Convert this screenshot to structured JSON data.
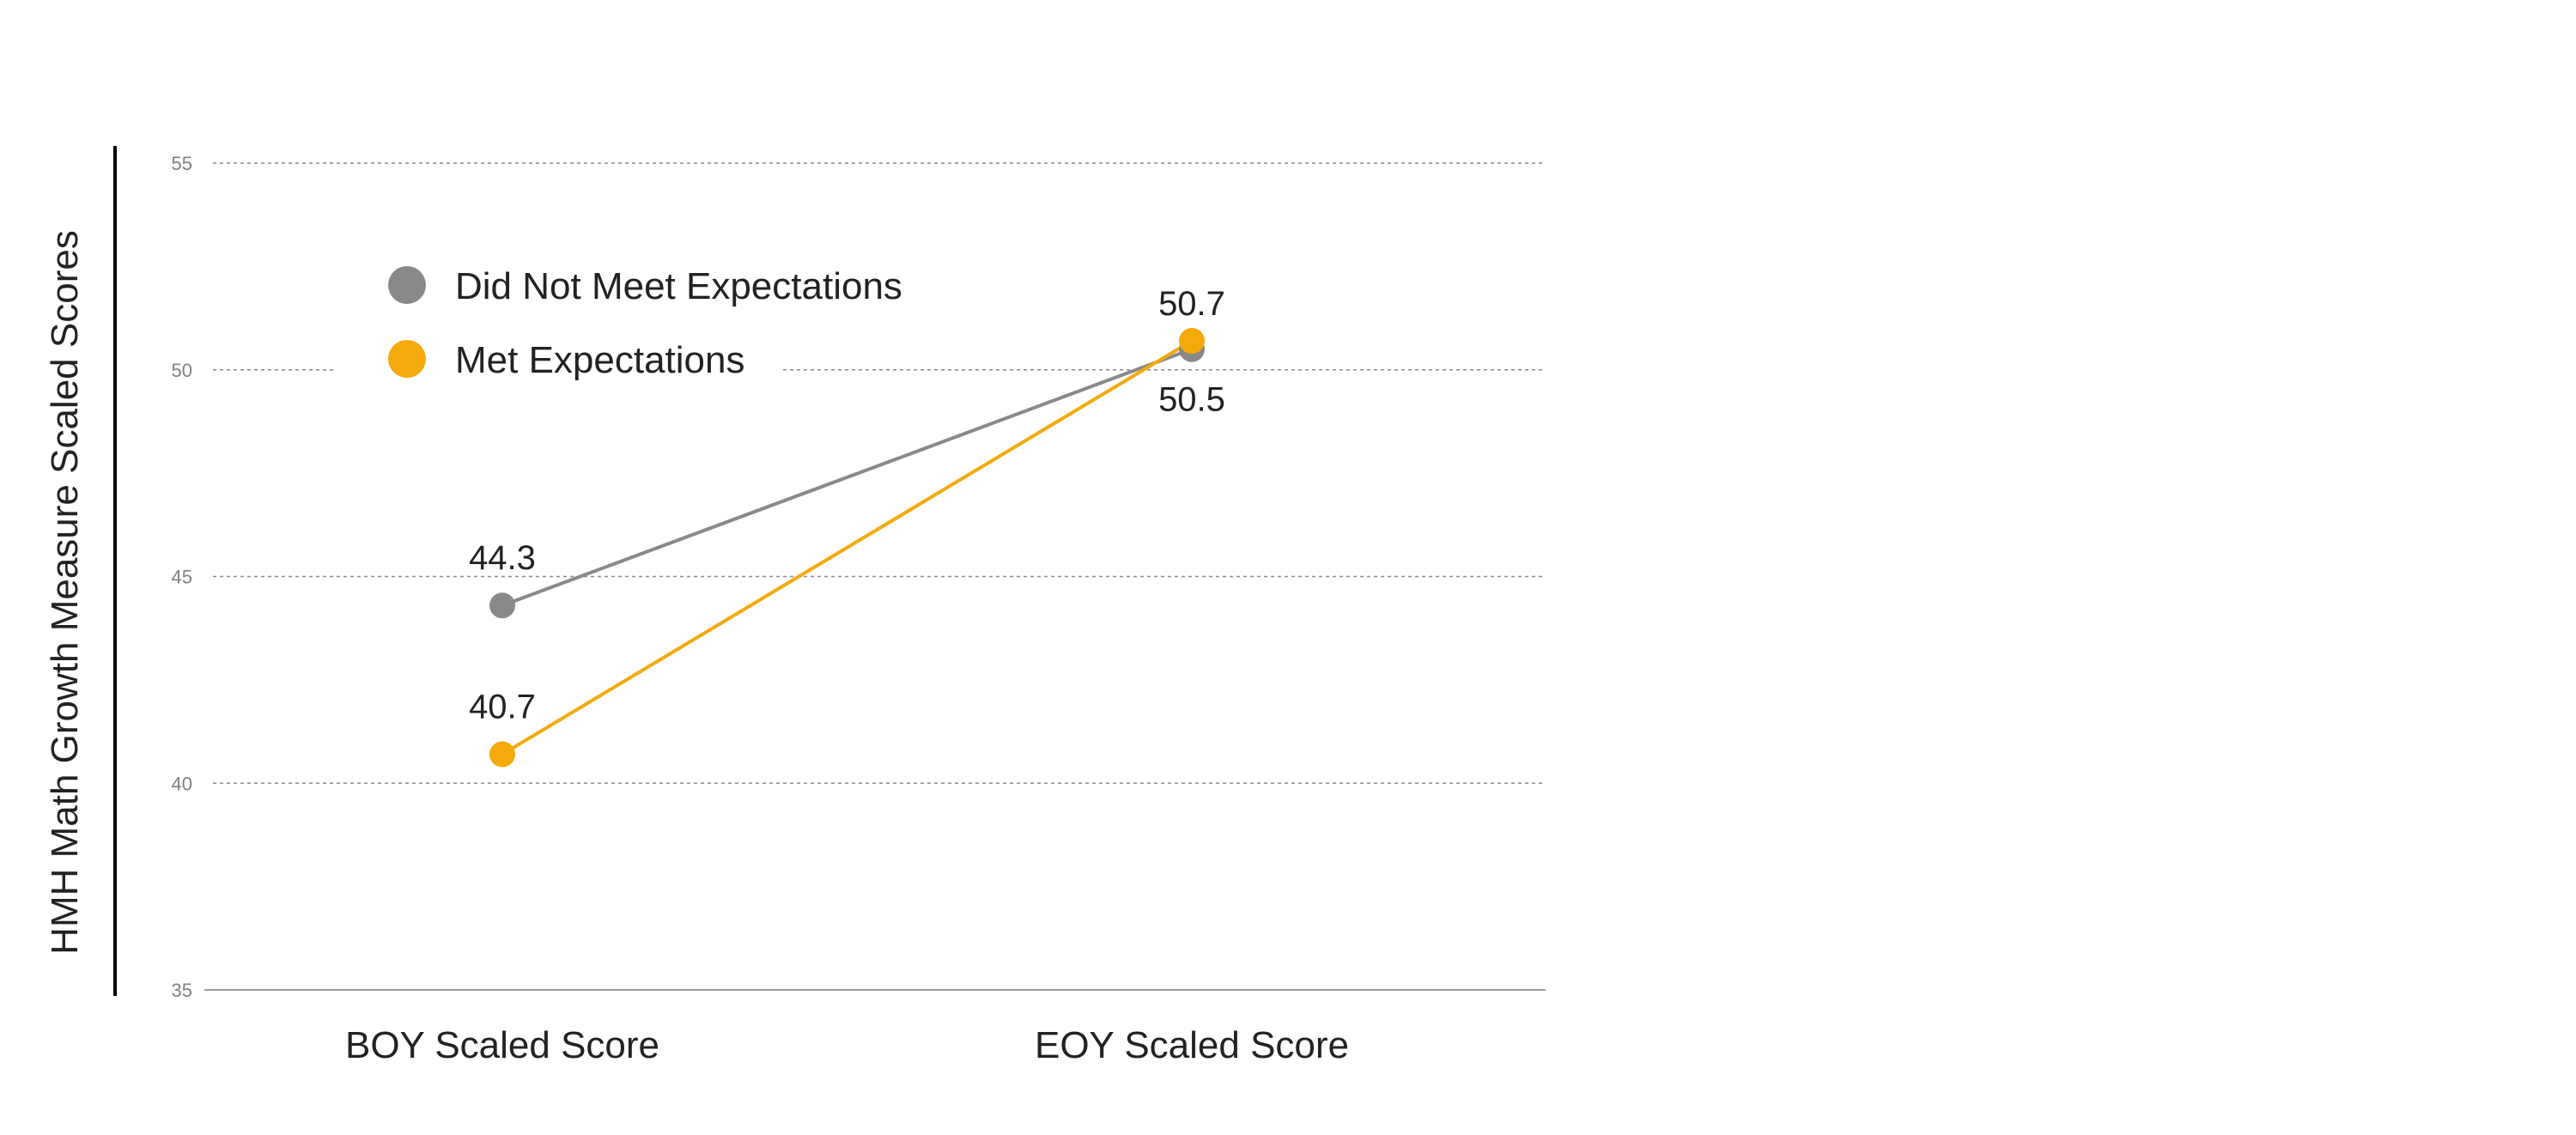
{
  "chart_data": {
    "type": "line",
    "title": "",
    "xlabel": "",
    "ylabel": "HMH Math Growth Measure Scaled Scores",
    "categories": [
      "BOY Scaled Score",
      "EOY Scaled Score"
    ],
    "ylim": [
      35,
      55
    ],
    "yticks": [
      35,
      40,
      45,
      50,
      55
    ],
    "grid": true,
    "legend_position": "top-left",
    "series": [
      {
        "name": "Did Not Meet Expectations",
        "values": [
          44.3,
          50.5
        ],
        "color": "#898989"
      },
      {
        "name": "Met Expectations",
        "values": [
          40.7,
          50.7
        ],
        "color": "#F5AA0B"
      }
    ]
  }
}
